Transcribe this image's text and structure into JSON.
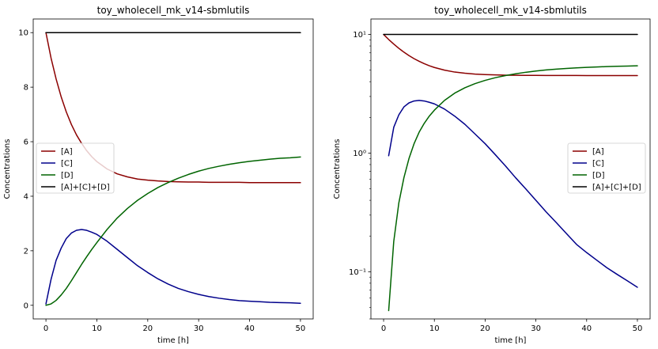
{
  "chart_data": [
    {
      "type": "line",
      "title": "toy_wholecell_mk_v14-sbmlutils",
      "xlabel": "time [h]",
      "ylabel": "Concentrations",
      "yscale": "linear",
      "xlim": [
        -2.5,
        52.5
      ],
      "ylim": [
        -0.5,
        10.5
      ],
      "xticks": [
        0,
        10,
        20,
        30,
        40,
        50
      ],
      "yticks": [
        0,
        2,
        4,
        6,
        8,
        10
      ],
      "ytick_labels": [
        "0",
        "2",
        "4",
        "6",
        "8",
        "10"
      ],
      "legend": "center-left",
      "grid": false,
      "x": [
        0,
        1,
        2,
        3,
        4,
        5,
        6,
        7,
        8,
        9,
        10,
        12,
        14,
        16,
        18,
        20,
        22,
        24,
        26,
        28,
        30,
        32,
        34,
        36,
        38,
        40,
        42,
        44,
        46,
        48,
        50
      ],
      "series": [
        {
          "name": "[A]",
          "color": "#8b0000",
          "values": [
            10.0,
            9.07,
            8.3,
            7.64,
            7.09,
            6.63,
            6.25,
            5.94,
            5.67,
            5.45,
            5.27,
            5.0,
            4.82,
            4.71,
            4.63,
            4.59,
            4.56,
            4.54,
            4.53,
            4.52,
            4.52,
            4.51,
            4.51,
            4.51,
            4.51,
            4.5,
            4.5,
            4.5,
            4.5,
            4.5,
            4.5
          ]
        },
        {
          "name": "[C]",
          "color": "#00008b",
          "values": [
            0.05,
            0.95,
            1.65,
            2.1,
            2.45,
            2.65,
            2.75,
            2.78,
            2.75,
            2.68,
            2.6,
            2.35,
            2.05,
            1.75,
            1.45,
            1.2,
            0.97,
            0.78,
            0.62,
            0.5,
            0.4,
            0.32,
            0.26,
            0.21,
            0.17,
            0.15,
            0.13,
            0.11,
            0.1,
            0.09,
            0.075
          ]
        },
        {
          "name": "[D]",
          "color": "#006400",
          "values": [
            0.0,
            0.05,
            0.18,
            0.38,
            0.62,
            0.9,
            1.2,
            1.5,
            1.78,
            2.05,
            2.3,
            2.78,
            3.2,
            3.55,
            3.85,
            4.1,
            4.32,
            4.5,
            4.66,
            4.8,
            4.92,
            5.02,
            5.1,
            5.17,
            5.23,
            5.28,
            5.32,
            5.36,
            5.39,
            5.41,
            5.44
          ]
        },
        {
          "name": "[A]+[C]+[D]",
          "color": "#000000",
          "values": [
            10,
            10,
            10,
            10,
            10,
            10,
            10,
            10,
            10,
            10,
            10,
            10,
            10,
            10,
            10,
            10,
            10,
            10,
            10,
            10,
            10,
            10,
            10,
            10,
            10,
            10,
            10,
            10,
            10,
            10,
            10
          ]
        }
      ]
    },
    {
      "type": "line",
      "title": "toy_wholecell_mk_v14-sbmlutils",
      "xlabel": "time [h]",
      "ylabel": "Concentrations",
      "yscale": "log",
      "xlim": [
        -2.5,
        52.5
      ],
      "ylim": [
        0.04,
        13.5
      ],
      "xticks": [
        0,
        10,
        20,
        30,
        40,
        50
      ],
      "yticks": [
        0.1,
        1,
        10
      ],
      "ytick_labels": [
        "10⁻¹",
        "10⁰",
        "10¹"
      ],
      "legend": "center-right",
      "grid": false,
      "x": [
        0,
        1,
        2,
        3,
        4,
        5,
        6,
        7,
        8,
        9,
        10,
        12,
        14,
        16,
        18,
        20,
        22,
        24,
        26,
        28,
        30,
        32,
        34,
        36,
        38,
        40,
        42,
        44,
        46,
        48,
        50
      ],
      "series": [
        {
          "name": "[A]",
          "color": "#8b0000",
          "values": [
            10.0,
            9.07,
            8.3,
            7.64,
            7.09,
            6.63,
            6.25,
            5.94,
            5.67,
            5.45,
            5.27,
            5.0,
            4.82,
            4.71,
            4.63,
            4.59,
            4.56,
            4.54,
            4.53,
            4.52,
            4.52,
            4.51,
            4.51,
            4.51,
            4.51,
            4.5,
            4.5,
            4.5,
            4.5,
            4.5,
            4.5
          ]
        },
        {
          "name": "[C]",
          "color": "#00008b",
          "values": [
            null,
            0.95,
            1.65,
            2.1,
            2.45,
            2.65,
            2.75,
            2.78,
            2.75,
            2.68,
            2.6,
            2.35,
            2.05,
            1.75,
            1.45,
            1.2,
            0.97,
            0.78,
            0.62,
            0.5,
            0.4,
            0.32,
            0.26,
            0.21,
            0.17,
            0.145,
            0.125,
            0.108,
            0.095,
            0.084,
            0.074
          ]
        },
        {
          "name": "[D]",
          "color": "#006400",
          "values": [
            null,
            0.047,
            0.18,
            0.38,
            0.62,
            0.9,
            1.2,
            1.5,
            1.78,
            2.05,
            2.3,
            2.78,
            3.2,
            3.55,
            3.85,
            4.1,
            4.32,
            4.5,
            4.66,
            4.8,
            4.92,
            5.02,
            5.1,
            5.17,
            5.23,
            5.28,
            5.32,
            5.36,
            5.39,
            5.41,
            5.44
          ]
        },
        {
          "name": "[A]+[C]+[D]",
          "color": "#000000",
          "values": [
            10,
            10,
            10,
            10,
            10,
            10,
            10,
            10,
            10,
            10,
            10,
            10,
            10,
            10,
            10,
            10,
            10,
            10,
            10,
            10,
            10,
            10,
            10,
            10,
            10,
            10,
            10,
            10,
            10,
            10,
            10
          ]
        }
      ]
    }
  ]
}
